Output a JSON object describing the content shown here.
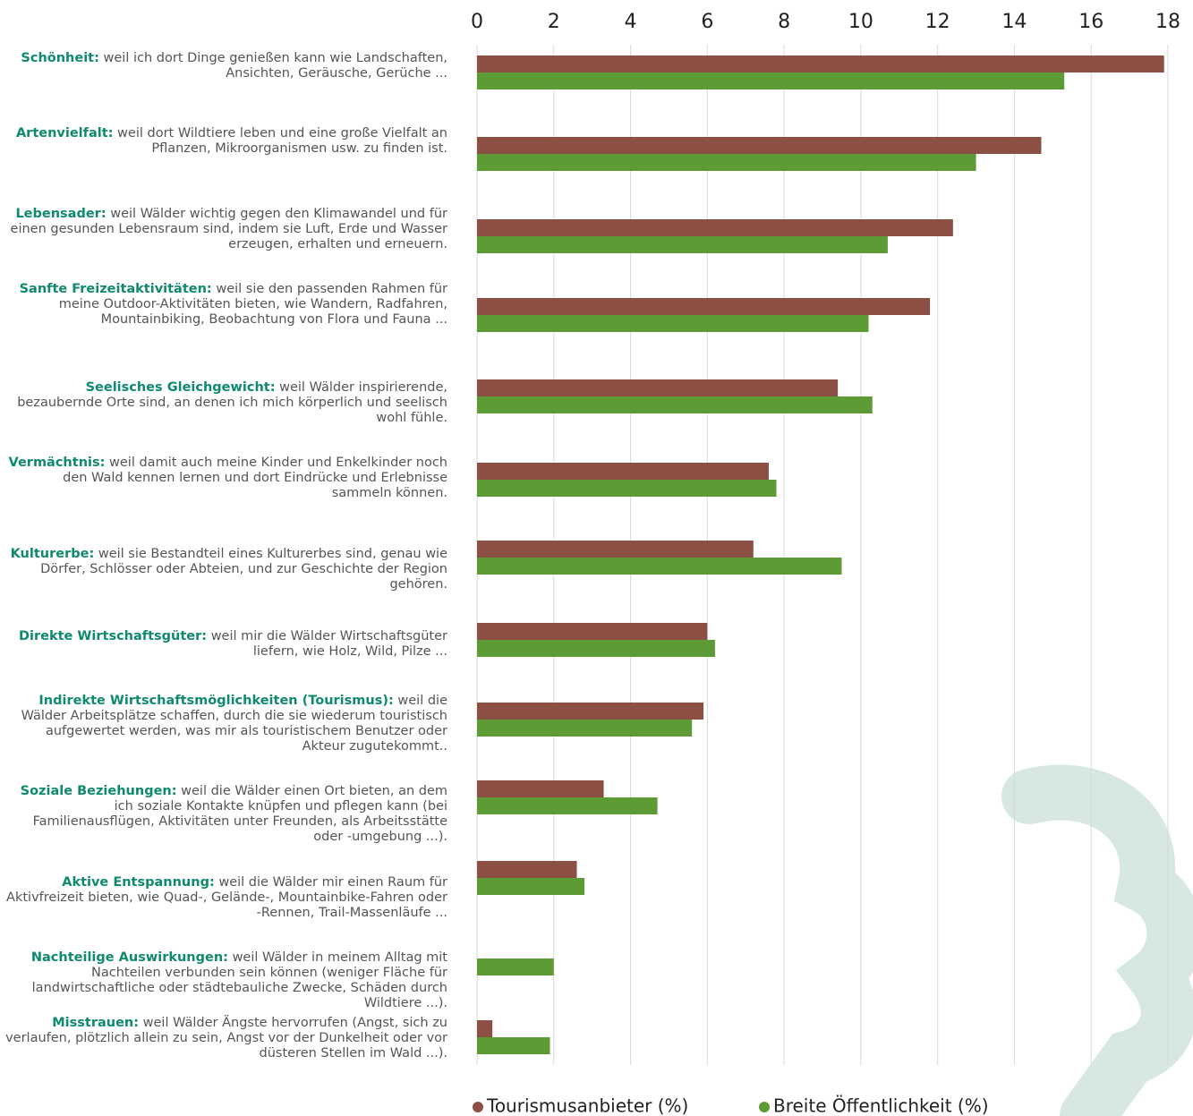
{
  "chart_data": {
    "type": "hbar",
    "categories": [
      "Schönheit:",
      "Artenvielfalt:",
      "Lebensader:",
      "Sanfte Freizeitaktivitäten:",
      "Seelisches Gleichgewicht:",
      "Vermächtnis:",
      "Kulturerbe:",
      "Direkte Wirtschaftsgüter:",
      "Indirekte Wirtschaftsmöglichkeiten (Tourismus):",
      "Soziale Beziehungen:",
      "Aktive Entspannung:",
      "Nachteilige Auswirkungen:",
      "Misstrauen:"
    ],
    "category_descriptions": [
      "weil ich dort Dinge genießen kann wie Landschaften, Ansichten, Geräusche, Gerüche ...",
      "weil dort Wildtiere leben und eine große Vielfalt an Pflanzen, Mikroorganismen usw. zu finden ist.",
      "weil Wälder wichtig gegen den Klimawandel und für einen gesunden Lebensraum sind, indem sie Luft, Erde und Wasser erzeugen, erhalten und erneuern.",
      "weil sie den passenden Rahmen für meine Outdoor-Aktivitäten bieten, wie Wandern, Radfahren, Mountainbiking, Beobachtung von Flora und Fauna ...",
      "weil Wälder inspirierende, bezaubernde Orte sind, an denen ich mich körperlich und seelisch wohl fühle.",
      "weil damit auch meine Kinder und Enkelkinder noch den Wald kennen lernen und dort Eindrücke und Erlebnisse sammeln können.",
      "weil sie Bestandteil eines Kulturerbes sind, genau wie Dörfer, Schlösser oder Abteien, und zur Geschichte der Region gehören.",
      "weil mir die Wälder Wirtschaftsgüter liefern, wie Holz, Wild, Pilze ...",
      "weil die Wälder Arbeitsplätze schaffen, durch die sie wiederum touristisch aufgewertet werden, was mir als touristischem Benutzer oder Akteur zugutekommt..",
      "weil die Wälder einen Ort bieten, an dem ich soziale Kontakte knüpfen und pflegen kann (bei Familienausflügen, Aktivitäten unter Freunden, als Arbeitsstätte oder -umgebung ...).",
      "weil die Wälder mir einen Raum für Aktivfreizeit bieten, wie Quad-, Gelände-, Mountainbike-Fahren oder -Rennen, Trail-Massenläufe ...",
      "weil Wälder in meinem Alltag mit Nachteilen verbunden sein können (weniger Fläche für landwirtschaftliche oder städtebauliche Zwecke, Schäden durch Wildtiere ...).",
      "weil Wälder Ängste hervorrufen (Angst, sich zu verlaufen, plötzlich allein zu sein, Angst vor der Dunkelheit oder vor düsteren Stellen im Wald ...)."
    ],
    "series": [
      {
        "name": "Tourismusanbieter (%)",
        "color": "#8b4f44",
        "values": [
          17.9,
          14.7,
          12.4,
          11.8,
          9.4,
          7.6,
          7.2,
          6.0,
          5.9,
          3.3,
          2.6,
          0,
          0.4
        ]
      },
      {
        "name": "Breite Öffentlichkeit (%)",
        "color": "#5d9b35",
        "values": [
          15.3,
          13.0,
          10.7,
          10.2,
          10.3,
          7.8,
          9.5,
          6.2,
          5.6,
          4.7,
          2.8,
          2.0,
          1.9
        ]
      }
    ],
    "xlim": [
      0,
      18
    ],
    "xticks": [
      0,
      2,
      4,
      6,
      8,
      10,
      12,
      14,
      16,
      18
    ],
    "grid": true
  }
}
